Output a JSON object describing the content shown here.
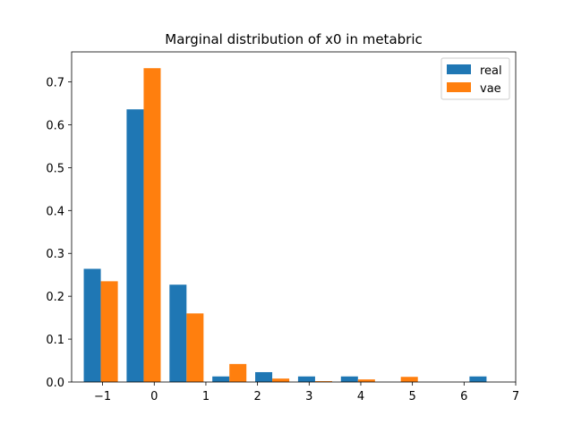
{
  "chart_data": {
    "type": "bar",
    "title": "Marginal distribution of x0 in metabric",
    "xlabel": "",
    "ylabel": "",
    "xlim": [
      -1.6,
      7.0
    ],
    "ylim": [
      0,
      0.77
    ],
    "x_ticks": [
      -1,
      0,
      1,
      2,
      3,
      4,
      5,
      6,
      7
    ],
    "x_tick_labels": [
      "−1",
      "0",
      "1",
      "2",
      "3",
      "4",
      "5",
      "6",
      "7"
    ],
    "y_ticks": [
      0.0,
      0.1,
      0.2,
      0.3,
      0.4,
      0.5,
      0.6,
      0.7
    ],
    "y_tick_labels": [
      "0.0",
      "0.1",
      "0.2",
      "0.3",
      "0.4",
      "0.5",
      "0.6",
      "0.7"
    ],
    "grid": false,
    "legend_position": "top-right",
    "series": [
      {
        "name": "real",
        "color": "#1f77b4",
        "x": [
          -1.2,
          -0.37,
          0.46,
          1.29,
          2.12,
          2.95,
          3.78,
          4.61,
          5.44,
          6.27
        ],
        "values": [
          0.264,
          0.636,
          0.227,
          0.013,
          0.023,
          0.013,
          0.013,
          0.0,
          0.0,
          0.013
        ]
      },
      {
        "name": "vae",
        "color": "#ff7f0e",
        "x": [
          -0.87,
          -0.04,
          0.79,
          1.62,
          2.45,
          3.28,
          4.11,
          4.94,
          5.77,
          6.6
        ],
        "values": [
          0.235,
          0.732,
          0.16,
          0.042,
          0.008,
          0.002,
          0.006,
          0.012,
          0.0,
          0.0
        ]
      }
    ]
  }
}
